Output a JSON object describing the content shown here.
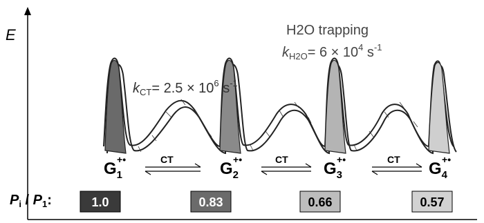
{
  "axis": {
    "ylabel": "E"
  },
  "annotations": {
    "trap_title": "H2O trapping",
    "trap_rate_k": "k",
    "trap_rate_sub": "H2O",
    "trap_rate_eq": "= 6 × 10",
    "trap_rate_exp": "4",
    "trap_rate_unit": " s",
    "trap_rate_unit_exp": "-1",
    "ct_rate_k": "k",
    "ct_rate_sub": "CT",
    "ct_rate_eq": "= 2.5 × 10",
    "ct_rate_exp": "6",
    "ct_rate_unit": " s",
    "ct_rate_unit_exp": "-1"
  },
  "sites": [
    {
      "label": "G",
      "sub": "1",
      "sup": "+•",
      "ratio": "1.0",
      "box_color": "#3a3a3a",
      "text_color": "#ffffff",
      "peak_color": "#6a6a6a"
    },
    {
      "label": "G",
      "sub": "2",
      "sup": "+•",
      "ratio": "0.83",
      "box_color": "#6b6b6b",
      "text_color": "#ffffff",
      "peak_color": "#8a8a8a"
    },
    {
      "label": "G",
      "sub": "3",
      "sup": "+•",
      "ratio": "0.66",
      "box_color": "#bdbdbd",
      "text_color": "#000000",
      "peak_color": "#b4b4b4"
    },
    {
      "label": "G",
      "sub": "4",
      "sup": "+•",
      "ratio": "0.57",
      "box_color": "#d2d2d2",
      "text_color": "#000000",
      "peak_color": "#cfcfcf"
    }
  ],
  "transfers": [
    {
      "label": "CT"
    },
    {
      "label": "CT"
    },
    {
      "label": "CT"
    }
  ],
  "ratio_label": {
    "p_i": "P",
    "p_i_sub": "i",
    "slash": " / ",
    "p_1": "P",
    "p_1_sub": "1",
    "colon": ":"
  }
}
